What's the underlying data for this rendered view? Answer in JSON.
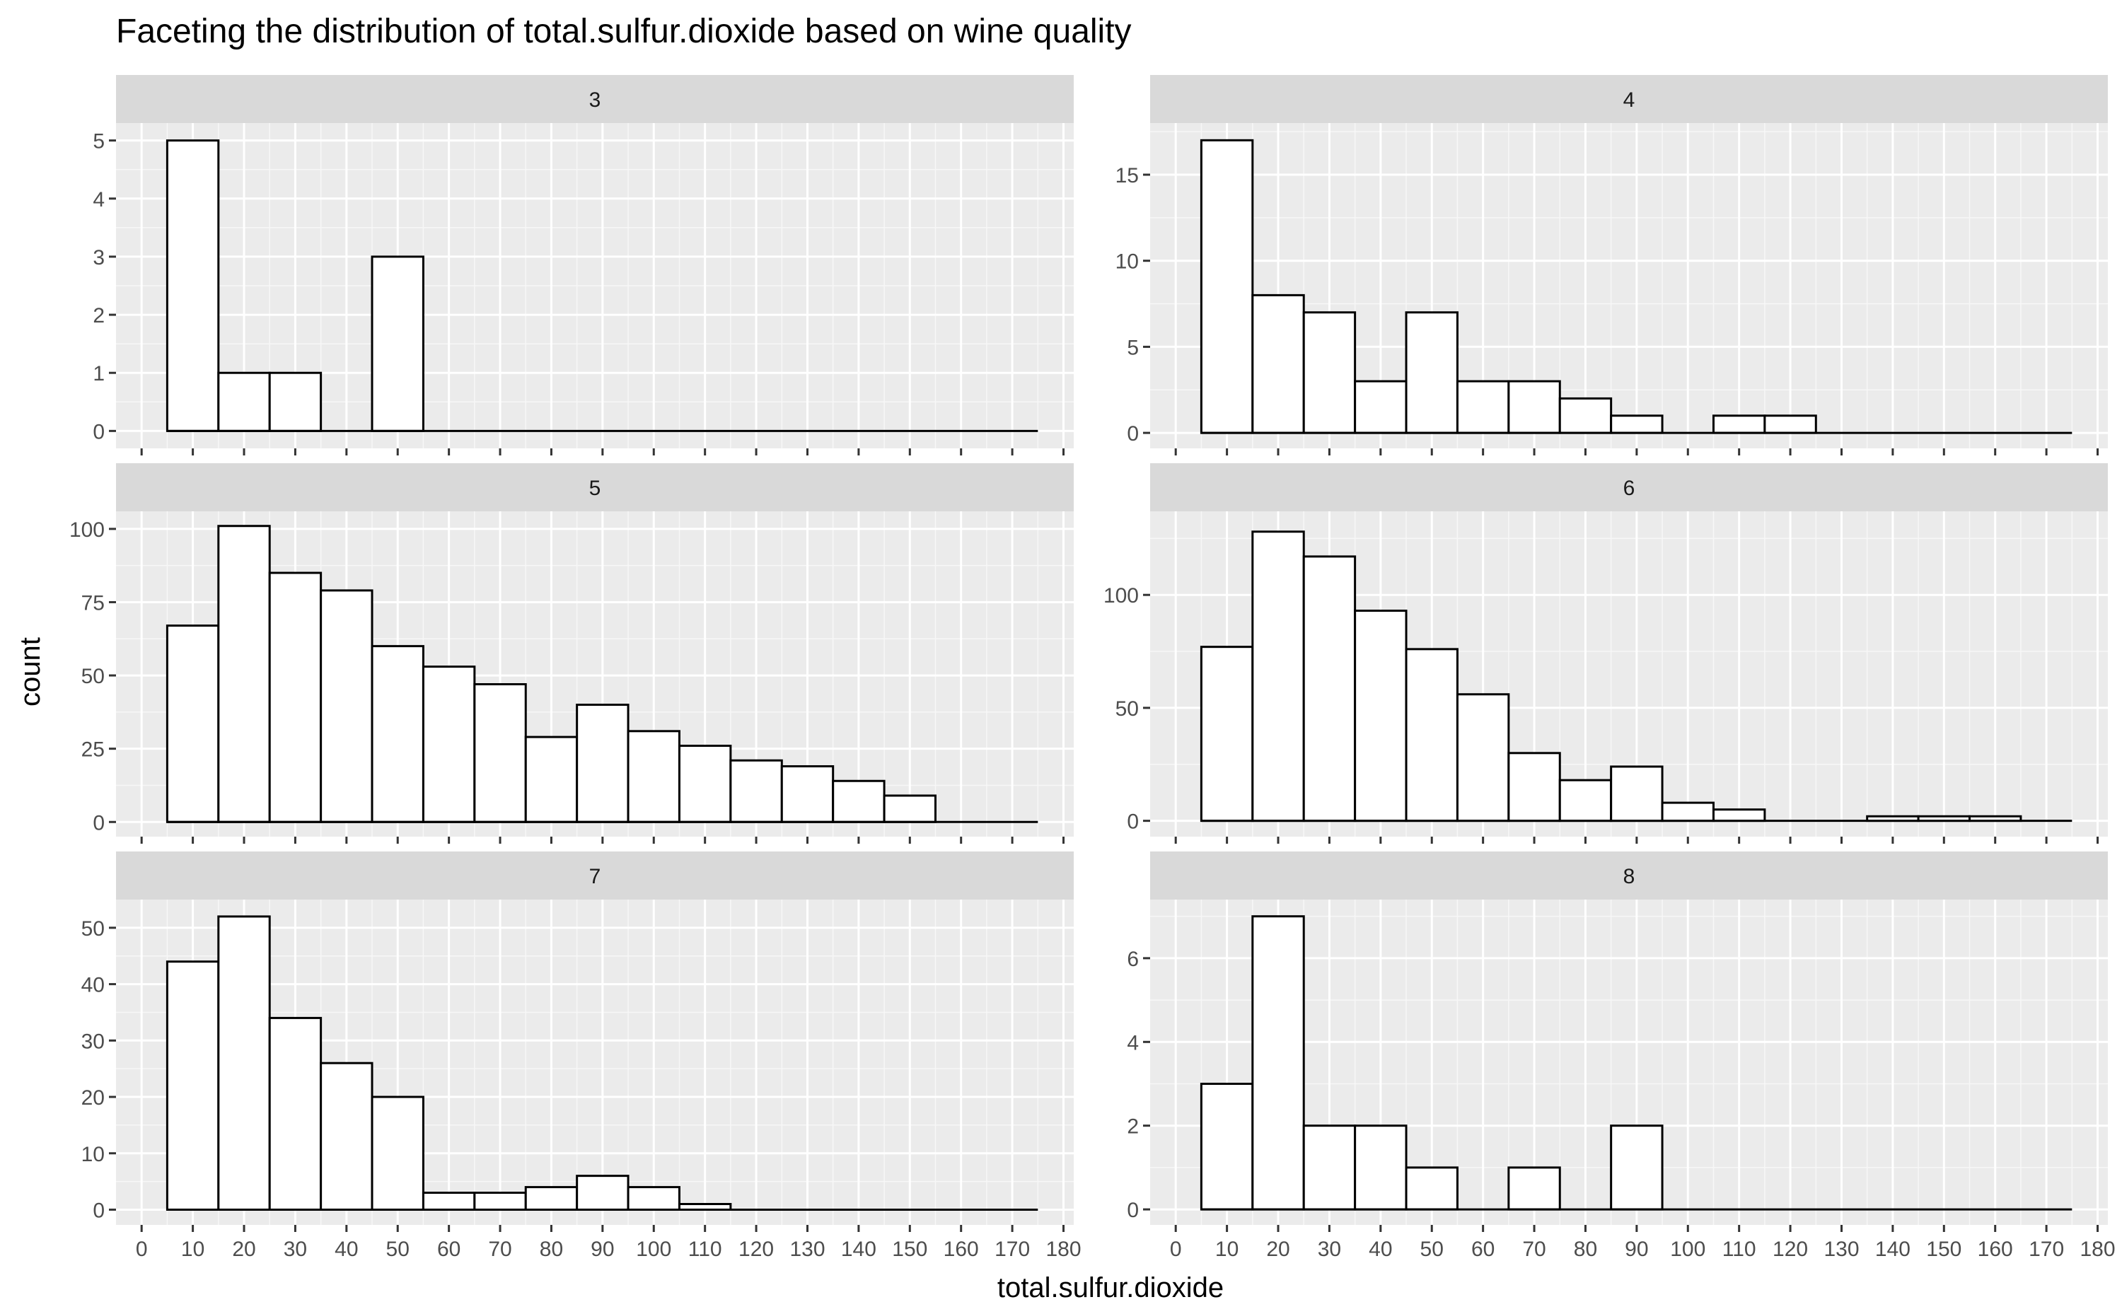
{
  "chart_data": {
    "type": "bar",
    "title": "Faceting the distribution of total.sulfur.dioxide based on wine quality",
    "xlabel": "total.sulfur.dioxide",
    "ylabel": "count",
    "grid": true,
    "bin_width": 10,
    "bin_starts": [
      5,
      15,
      25,
      35,
      45,
      55,
      65,
      75,
      85,
      95,
      105,
      115,
      125,
      135,
      145,
      155,
      165
    ],
    "xlim": [
      -5,
      182
    ],
    "x_ticks": [
      "0",
      "10",
      "20",
      "30",
      "40",
      "50",
      "60",
      "70",
      "80",
      "90",
      "100",
      "110",
      "120",
      "130",
      "140",
      "150",
      "160",
      "170",
      "180"
    ],
    "facets": [
      {
        "label": "3",
        "ylim": [
          -0.3,
          5.3
        ],
        "y_ticks": [
          "0",
          "1",
          "2",
          "3",
          "4",
          "5"
        ],
        "values": [
          5,
          1,
          1,
          0,
          3,
          0,
          0,
          0,
          0,
          0,
          0,
          0,
          0,
          0,
          0,
          0,
          0
        ]
      },
      {
        "label": "4",
        "ylim": [
          -0.9,
          18
        ],
        "y_ticks": [
          "0",
          "5",
          "10",
          "15"
        ],
        "values": [
          17,
          8,
          7,
          3,
          7,
          3,
          3,
          2,
          1,
          0,
          1,
          1,
          0,
          0,
          0,
          0,
          0
        ]
      },
      {
        "label": "5",
        "ylim": [
          -5,
          106
        ],
        "y_ticks": [
          "0",
          "25",
          "50",
          "75",
          "100"
        ],
        "values": [
          67,
          101,
          85,
          79,
          60,
          53,
          47,
          29,
          40,
          31,
          26,
          21,
          19,
          14,
          9,
          0,
          0
        ]
      },
      {
        "label": "6",
        "ylim": [
          -7,
          137
        ],
        "y_ticks": [
          "0",
          "50",
          "100"
        ],
        "values": [
          77,
          128,
          117,
          93,
          76,
          56,
          30,
          18,
          24,
          8,
          5,
          0,
          0,
          2,
          2,
          2,
          0
        ]
      },
      {
        "label": "7",
        "ylim": [
          -2.7,
          55
        ],
        "y_ticks": [
          "0",
          "10",
          "20",
          "30",
          "40",
          "50"
        ],
        "values": [
          44,
          52,
          34,
          26,
          20,
          3,
          3,
          4,
          6,
          4,
          1,
          0,
          0,
          0,
          0,
          0,
          0
        ]
      },
      {
        "label": "8",
        "ylim": [
          -0.37,
          7.4
        ],
        "y_ticks": [
          "0",
          "2",
          "4",
          "6"
        ],
        "values": [
          3,
          7,
          2,
          2,
          1,
          0,
          1,
          0,
          2,
          0,
          0,
          0,
          0,
          0,
          0,
          0,
          0
        ]
      }
    ]
  }
}
